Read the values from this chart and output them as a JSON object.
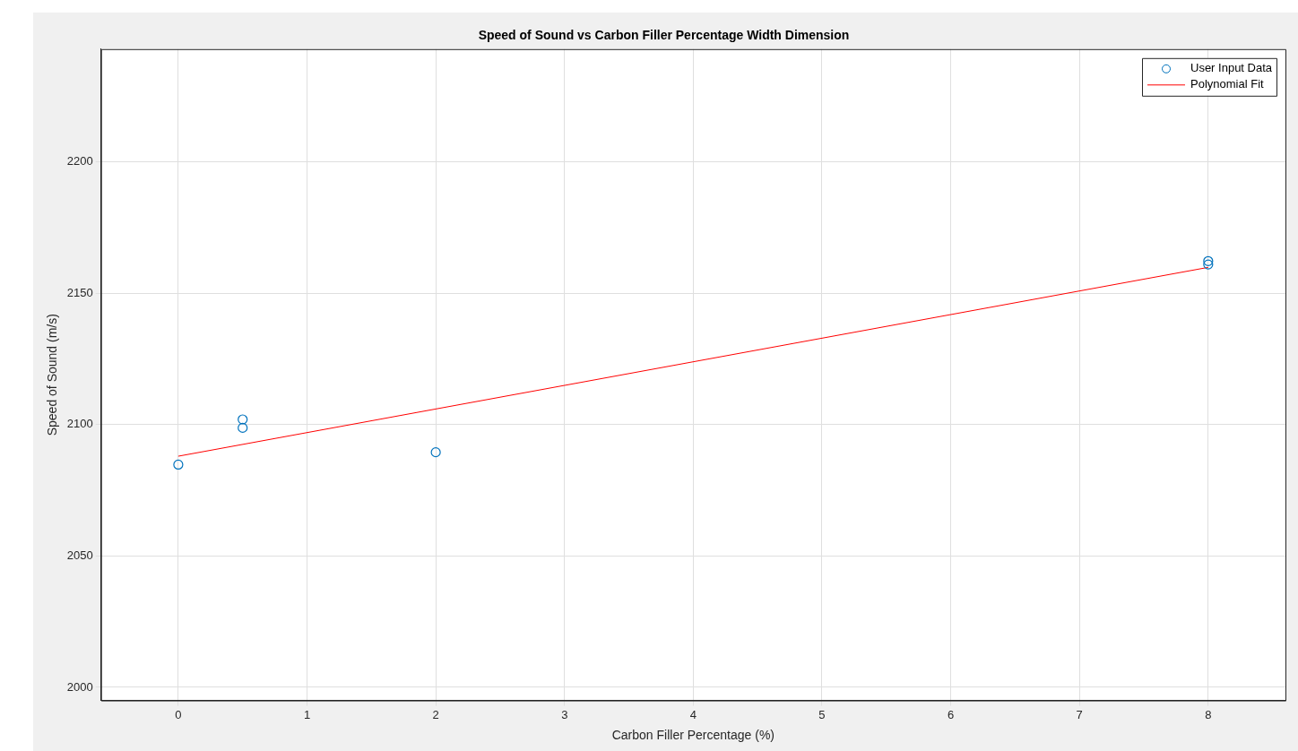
{
  "chart_data": {
    "type": "scatter",
    "title": "Speed of Sound vs Carbon Filler Percentage Width Dimension",
    "xlabel": "Carbon Filler Percentage (%)",
    "ylabel": "Speed of Sound (m/s)",
    "xlim": [
      -0.6,
      8.6
    ],
    "xticks": [
      0,
      1,
      2,
      3,
      4,
      5,
      6,
      7,
      8
    ],
    "ylim": [
      1995,
      2243
    ],
    "yticks": [
      2000,
      2050,
      2100,
      2150,
      2200
    ],
    "grid": true,
    "legend": "top right",
    "series": [
      {
        "name": "User Input Data",
        "type": "scatter",
        "color": "#0072bd",
        "marker": "circle",
        "x": [
          0,
          0.5,
          0.5,
          2,
          8,
          8
        ],
        "values": [
          2084.8,
          2102,
          2098.8,
          2089.5,
          2162.3,
          2161
        ]
      },
      {
        "name": "Polynomial Fit",
        "type": "line",
        "color": "#ff0000",
        "marker": "none",
        "line_style": "solid",
        "x": [
          0,
          8
        ],
        "values": [
          2088,
          2159.9
        ]
      }
    ]
  }
}
